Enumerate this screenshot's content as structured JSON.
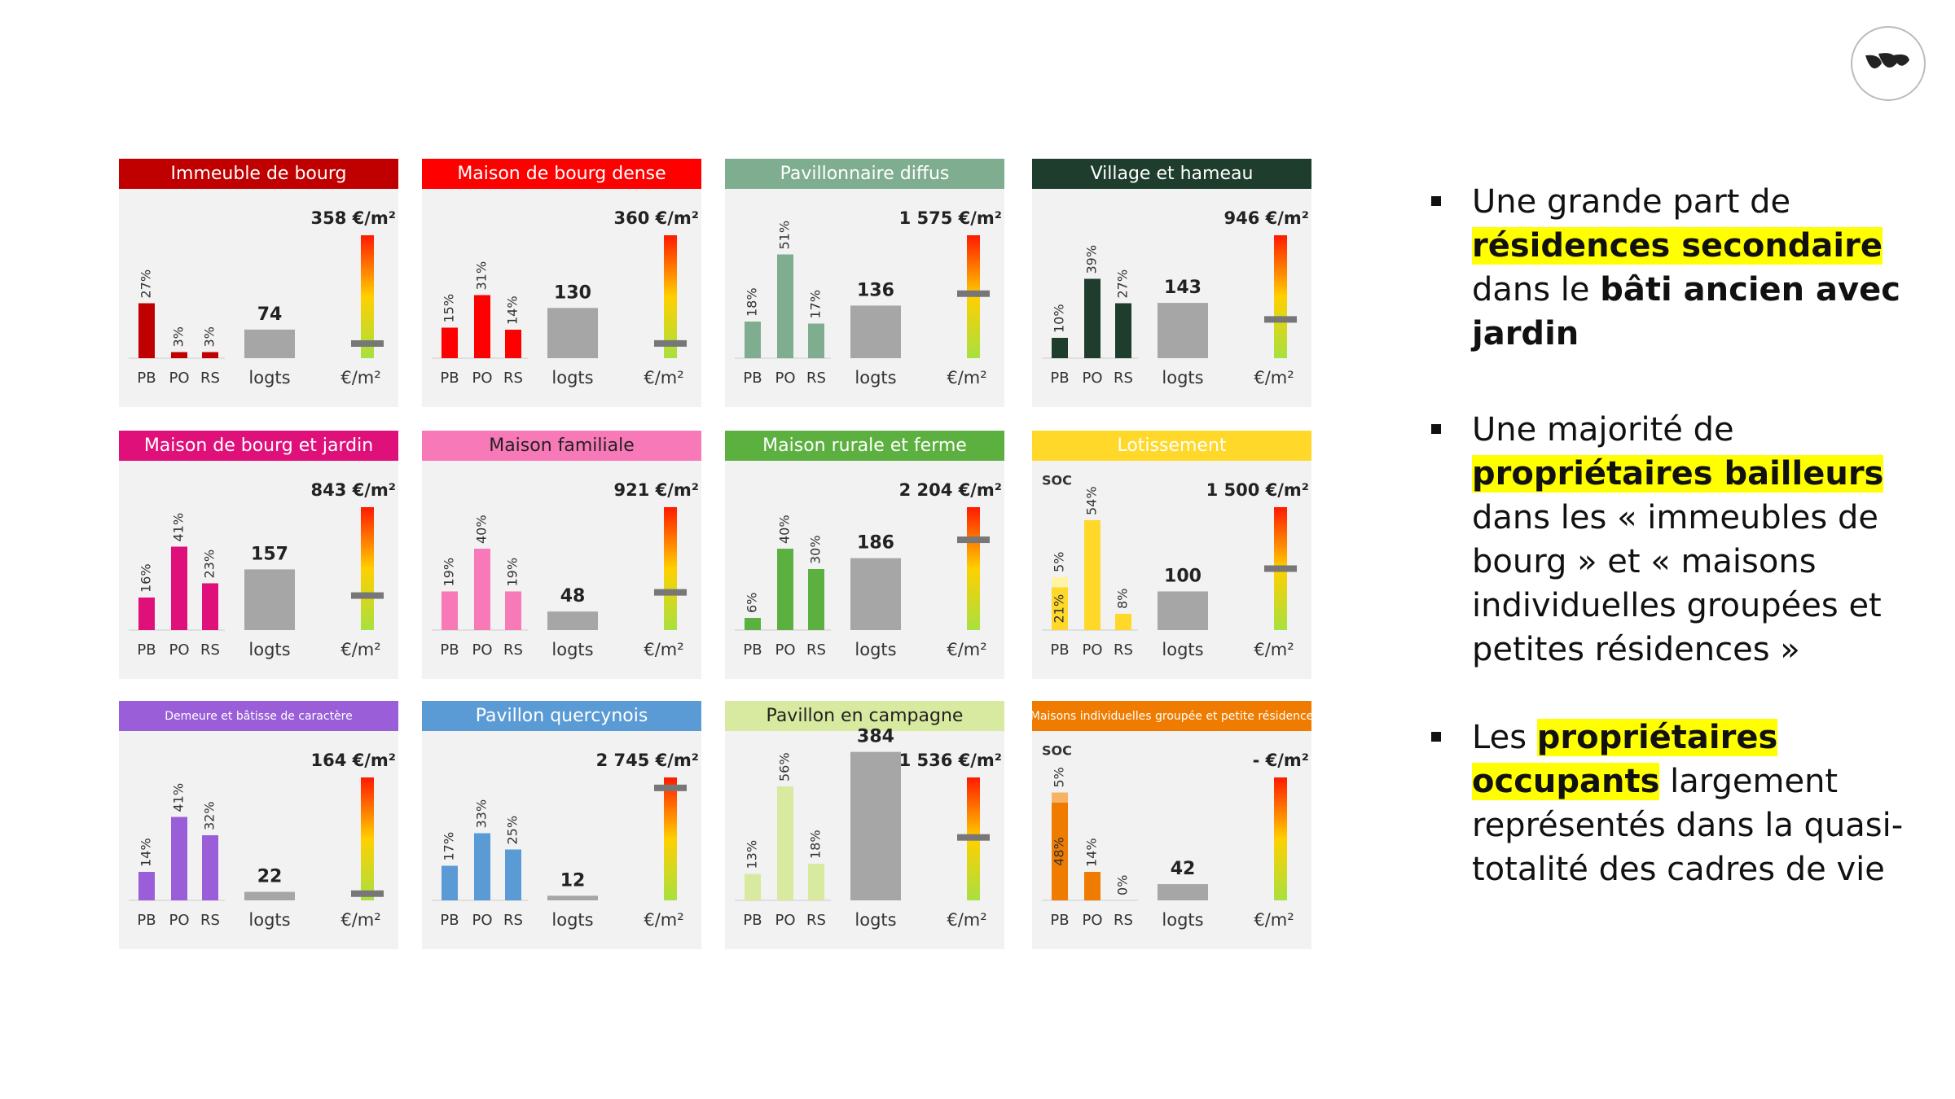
{
  "chart_data": [
    {
      "type": "bar",
      "title": "Immeuble de bourg",
      "color": "#c00000",
      "title_color": "#ffffff",
      "categories": [
        "PB",
        "PO",
        "RS"
      ],
      "values": [
        27,
        3,
        3
      ],
      "value_labels": [
        "27%",
        "3%",
        "3%"
      ],
      "logts": {
        "value": 74,
        "label": "logts"
      },
      "price": {
        "value": 358,
        "label": "358 €/m²",
        "axis_label": "€/m²"
      }
    },
    {
      "type": "bar",
      "title": "Maison de bourg dense",
      "color": "#ff0000",
      "title_color": "#ffffff",
      "categories": [
        "PB",
        "PO",
        "RS"
      ],
      "values": [
        15,
        31,
        14
      ],
      "value_labels": [
        "15%",
        "31%",
        "14%"
      ],
      "logts": {
        "value": 130,
        "label": "logts"
      },
      "price": {
        "value": 360,
        "label": "360 €/m²",
        "axis_label": "€/m²"
      }
    },
    {
      "type": "bar",
      "title": "Pavillonnaire diffus",
      "color": "#7fad8f",
      "title_color": "#ffffff",
      "categories": [
        "PB",
        "PO",
        "RS"
      ],
      "values": [
        18,
        51,
        17
      ],
      "value_labels": [
        "18%",
        "51%",
        "17%"
      ],
      "logts": {
        "value": 136,
        "label": "logts"
      },
      "price": {
        "value": 1575,
        "label": "1 575 €/m²",
        "axis_label": "€/m²"
      }
    },
    {
      "type": "bar",
      "title": "Village et hameau",
      "color": "#1f3d2d",
      "title_color": "#ffffff",
      "categories": [
        "PB",
        "PO",
        "RS"
      ],
      "values": [
        10,
        39,
        27
      ],
      "value_labels": [
        "10%",
        "39%",
        "27%"
      ],
      "logts": {
        "value": 143,
        "label": "logts"
      },
      "price": {
        "value": 946,
        "label": "946 €/m²",
        "axis_label": "€/m²"
      }
    },
    {
      "type": "bar",
      "title": "Maison de bourg et jardin",
      "color": "#e0107a",
      "title_color": "#ffffff",
      "categories": [
        "PB",
        "PO",
        "RS"
      ],
      "values": [
        16,
        41,
        23
      ],
      "value_labels": [
        "16%",
        "41%",
        "23%"
      ],
      "logts": {
        "value": 157,
        "label": "logts"
      },
      "price": {
        "value": 843,
        "label": "843 €/m²",
        "axis_label": "€/m²"
      }
    },
    {
      "type": "bar",
      "title": "Maison familiale",
      "color": "#f779b8",
      "title_color": "#222222",
      "categories": [
        "PB",
        "PO",
        "RS"
      ],
      "values": [
        19,
        40,
        19
      ],
      "value_labels": [
        "19%",
        "40%",
        "19%"
      ],
      "logts": {
        "value": 48,
        "label": "logts"
      },
      "price": {
        "value": 921,
        "label": "921 €/m²",
        "axis_label": "€/m²"
      }
    },
    {
      "type": "bar",
      "title": "Maison rurale et ferme",
      "color": "#5cb040",
      "title_color": "#ffffff",
      "categories": [
        "PB",
        "PO",
        "RS"
      ],
      "values": [
        6,
        40,
        30
      ],
      "value_labels": [
        "6%",
        "40%",
        "30%"
      ],
      "logts": {
        "value": 186,
        "label": "logts"
      },
      "price": {
        "value": 2204,
        "label": "2 204 €/m²",
        "axis_label": "€/m²"
      }
    },
    {
      "type": "bar",
      "title": "Lotissement",
      "color": "#ffd82a",
      "title_color": "#ffffff",
      "categories": [
        "PB",
        "PO",
        "RS"
      ],
      "values": [
        21,
        54,
        8
      ],
      "value_labels": [
        "21%",
        "54%",
        "8%"
      ],
      "soc": {
        "label": "SOC",
        "value": 5,
        "value_label": "5%",
        "color": "#fff3a6"
      },
      "logts": {
        "value": 100,
        "label": "logts"
      },
      "price": {
        "value": 1500,
        "label": "1 500 €/m²",
        "axis_label": "€/m²"
      }
    },
    {
      "type": "bar",
      "title": "Demeure et bâtisse de caractère",
      "color": "#9a5fd8",
      "title_color": "#ffffff",
      "categories": [
        "PB",
        "PO",
        "RS"
      ],
      "values": [
        14,
        41,
        32
      ],
      "value_labels": [
        "14%",
        "41%",
        "32%"
      ],
      "logts": {
        "value": 22,
        "label": "logts"
      },
      "price": {
        "value": 164,
        "label": "164 €/m²",
        "axis_label": "€/m²"
      }
    },
    {
      "type": "bar",
      "title": "Pavillon quercynois",
      "color": "#5b9bd5",
      "title_color": "#ffffff",
      "categories": [
        "PB",
        "PO",
        "RS"
      ],
      "values": [
        17,
        33,
        25
      ],
      "value_labels": [
        "17%",
        "33%",
        "25%"
      ],
      "logts": {
        "value": 12,
        "label": "logts"
      },
      "price": {
        "value": 2745,
        "label": "2 745 €/m²",
        "axis_label": "€/m²"
      }
    },
    {
      "type": "bar",
      "title": "Pavillon en campagne",
      "color": "#d8e9a0",
      "title_color": "#222222",
      "categories": [
        "PB",
        "PO",
        "RS"
      ],
      "values": [
        13,
        56,
        18
      ],
      "value_labels": [
        "13%",
        "56%",
        "18%"
      ],
      "logts": {
        "value": 384,
        "label": "logts"
      },
      "price": {
        "value": 1536,
        "label": "1 536 €/m²",
        "axis_label": "€/m²"
      }
    },
    {
      "type": "bar",
      "title": "Maisons individuelles groupée et petite résidence",
      "color": "#ef7c00",
      "title_color": "#ffffff",
      "categories": [
        "PB",
        "PO",
        "RS"
      ],
      "values": [
        48,
        14,
        0
      ],
      "value_labels": [
        "48%",
        "14%",
        "0%"
      ],
      "soc": {
        "label": "SOC",
        "value": 5,
        "value_label": "5%",
        "color": "#f7b266"
      },
      "logts": {
        "value": 42,
        "label": "logts"
      },
      "price": {
        "value": null,
        "label": "- €/m²",
        "axis_label": "€/m²"
      }
    }
  ],
  "bullets": [
    [
      {
        "text": "Une grande part de ",
        "style": "plain"
      },
      {
        "text": "résidences secondaire",
        "style": "highlight"
      },
      {
        "text": " dans le ",
        "style": "plain"
      },
      {
        "text": "bâti ancien avec jardin",
        "style": "bold"
      }
    ],
    [
      {
        "text": "Une majorité de ",
        "style": "plain"
      },
      {
        "text": "propriétaires bailleurs",
        "style": "highlight"
      },
      {
        "text": " dans les « immeubles de bourg » et « maisons individuelles groupées et petites résidences »",
        "style": "plain"
      }
    ],
    [
      {
        "text": "Les ",
        "style": "plain"
      },
      {
        "text": "propriétaires occupants",
        "style": "highlight"
      },
      {
        "text": " largement représentés dans la quasi-totalité des cadres de vie",
        "style": "plain"
      }
    ]
  ]
}
